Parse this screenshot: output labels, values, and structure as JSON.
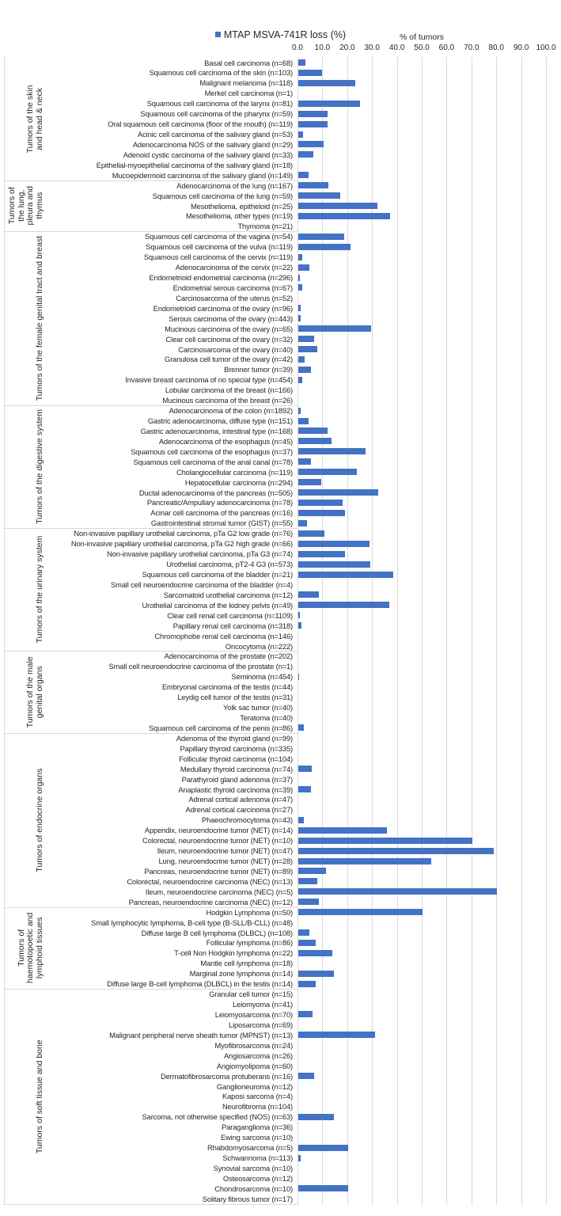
{
  "chart_data": {
    "type": "bar",
    "orientation": "horizontal",
    "legend": "MTAP MSVA-741R loss (%)",
    "legend_position": "top-center",
    "xlabel": "% of tumors",
    "xlim": [
      0,
      100
    ],
    "xticks": [
      "0.0",
      "10.0",
      "20.0",
      "30.0",
      "40.0",
      "50.0",
      "60.0",
      "70.0",
      "80.0",
      "90.0",
      "100.0"
    ],
    "grid": true,
    "color": "#4472c4",
    "groups": [
      {
        "name": "Tumors of the skin and head & neck",
        "lines": [
          "Tumors of the skin",
          "and head & neck"
        ],
        "items": [
          {
            "label": "Basal cell carcinoma (n=68)",
            "value": 2.9
          },
          {
            "label": "Squamous cell carcinoma of the skin (n=103)",
            "value": 9.7
          },
          {
            "label": "Malignant melanoma (n=118)",
            "value": 22.9
          },
          {
            "label": "Merkel cell carcinoma (n=1)",
            "value": 0
          },
          {
            "label": "Squamous cell carcinoma of the larynx (n=81)",
            "value": 24.7
          },
          {
            "label": "Squamous cell carcinoma of the pharynx (n=59)",
            "value": 11.9
          },
          {
            "label": "Oral squamous cell carcinoma (floor of the mouth) (n=119)",
            "value": 11.8
          },
          {
            "label": "Acinic cell carcinoma of the salivary gland (n=53)",
            "value": 1.9
          },
          {
            "label": "Adenocarcinoma NOS of the salivary gland (n=29)",
            "value": 10.3
          },
          {
            "label": "Adenoid cystic carcinoma of the salivary gland (n=33)",
            "value": 6.1
          },
          {
            "label": "Epithelial-myoepithelial carcinoma of the salivary gland (n=18)",
            "value": 0
          },
          {
            "label": "Mucoepidermoid carcinoma of the salivary gland (n=149)",
            "value": 4.0
          }
        ]
      },
      {
        "name": "Tumors of the lung, pleura and thymus",
        "lines": [
          "Tumors of",
          "the lung,",
          "pleura and",
          "thymus"
        ],
        "items": [
          {
            "label": "Adenocarcinoma of the lung (n=167)",
            "value": 12.0
          },
          {
            "label": "Squamous cell carcinoma of the lung (n=59)",
            "value": 16.9
          },
          {
            "label": "Mesothelioma, epitheloid (n=25)",
            "value": 32.0
          },
          {
            "label": "Mesothelioma, other types (n=19)",
            "value": 36.8
          },
          {
            "label": "Thymoma (n=21)",
            "value": 0
          }
        ]
      },
      {
        "name": "Tumors of the female genital tract and breast",
        "lines": [
          "Tumors of the female genital tract and breast"
        ],
        "items": [
          {
            "label": "Squamous cell carcinoma of the vagina (n=54)",
            "value": 18.5
          },
          {
            "label": "Squamous cell carcinoma of the vulva (n=119)",
            "value": 21.0
          },
          {
            "label": "Squamous cell carcinoma of the cervix (n=119)",
            "value": 1.7
          },
          {
            "label": "Adenocarcinoma of the cervix (n=22)",
            "value": 4.5
          },
          {
            "label": "Endometrioid endometrial carcinoma (n=296)",
            "value": 0.7
          },
          {
            "label": "Endometrial serous carcinoma (n=67)",
            "value": 1.5
          },
          {
            "label": "Carcinosarcoma of the uterus (n=52)",
            "value": 0
          },
          {
            "label": "Endometrioid carcinoma of the ovary (n=96)",
            "value": 1.0
          },
          {
            "label": "Serous carcinoma of the ovary (n=443)",
            "value": 1.1
          },
          {
            "label": "Mucinous carcinoma of the ovary (n=65)",
            "value": 29.2
          },
          {
            "label": "Clear cell carcinoma of the ovary (n=32)",
            "value": 6.3
          },
          {
            "label": "Carcinosarcoma of the ovary (n=40)",
            "value": 7.5
          },
          {
            "label": "Granulosa cell tumor of the ovary (n=42)",
            "value": 2.4
          },
          {
            "label": "Brenner tumor (n=39)",
            "value": 5.1
          },
          {
            "label": "Invasive breast carcinoma of no special type (n=454)",
            "value": 1.5
          },
          {
            "label": "Lobular carcinoma of the breast (n=166)",
            "value": 0
          },
          {
            "label": "Mucinous carcinoma of the breast (n=26)",
            "value": 0
          }
        ]
      },
      {
        "name": "Tumors of the digestive system",
        "lines": [
          "Tumors of the digestive system"
        ],
        "items": [
          {
            "label": "Adenocarcinoma of the colon (n=1892)",
            "value": 0.9
          },
          {
            "label": "Gastric adenocarcinoma, diffuse type (n=151)",
            "value": 4.0
          },
          {
            "label": "Gastric adenocarcinoma, intestinal type (n=168)",
            "value": 11.9
          },
          {
            "label": "Adenocarcinoma of the esophagus (n=45)",
            "value": 13.3
          },
          {
            "label": "Squamous cell carcinoma of the esophagus (n=37)",
            "value": 27.0
          },
          {
            "label": "Squamous cell carcinoma of the anal canal (n=78)",
            "value": 5.1
          },
          {
            "label": "Cholangiocellular carcinoma (n=119)",
            "value": 23.5
          },
          {
            "label": "Hepatocellular carcinoma (n=294)",
            "value": 9.2
          },
          {
            "label": "Ductal adenocarcinoma of the pancreas (n=505)",
            "value": 32.2
          },
          {
            "label": "Pancreatic/Ampullary adenocarcinoma (n=78)",
            "value": 17.9
          },
          {
            "label": "Acinar cell carcinoma of the pancreas (n=16)",
            "value": 18.8
          },
          {
            "label": "Gastrointestinal stromal tumor (GIST) (n=55)",
            "value": 3.6
          }
        ]
      },
      {
        "name": "Tumors of the urinary system",
        "lines": [
          "Tumors of the urinary system"
        ],
        "items": [
          {
            "label": "Non-invasive papillary urothelial carcinoma, pTa G2 low grade (n=76)",
            "value": 10.5
          },
          {
            "label": "Non-invasive papillary urothelial carcinoma, pTa G2 high grade (n=66)",
            "value": 28.8
          },
          {
            "label": "Non-invasive papillary urothelial carcinoma, pTa G3 (n=74)",
            "value": 18.9
          },
          {
            "label": "Urothelial carcinoma, pT2-4 G3 (n=573)",
            "value": 29.0
          },
          {
            "label": "Squamous cell carcinoma of the bladder (n=21)",
            "value": 38.1
          },
          {
            "label": "Small cell neuroendocrine carcinoma of the bladder (n=4)",
            "value": 0
          },
          {
            "label": "Sarcomatoid urothelial carcinoma (n=12)",
            "value": 8.3
          },
          {
            "label": "Urothelial carcinoma of the kidney pelvis (n=49)",
            "value": 36.7
          },
          {
            "label": "Clear cell renal cell carcinoma (n=1109)",
            "value": 0.5
          },
          {
            "label": "Papillary renal cell carcinoma (n=318)",
            "value": 1.3
          },
          {
            "label": "Chromophobe renal cell carcinoma (n=146)",
            "value": 0
          },
          {
            "label": "Oncocytoma (n=222)",
            "value": 0
          }
        ]
      },
      {
        "name": "Tumors of the male genital organs",
        "lines": [
          "Tumors of the male",
          "genital organs"
        ],
        "items": [
          {
            "label": "Adenocarcinoma of the prostate (n=202)",
            "value": 0
          },
          {
            "label": "Small cell neuroendocrine carcinoma of the prostate (n=1)",
            "value": 0
          },
          {
            "label": "Seminoma (n=454)",
            "value": 0.2
          },
          {
            "label": "Embryonal carcinoma of the testis (n=44)",
            "value": 0
          },
          {
            "label": "Leydig cell tumor of the testis (n=31)",
            "value": 0
          },
          {
            "label": "Yolk sac tumor (n=40)",
            "value": 0
          },
          {
            "label": "Teratoma (n=40)",
            "value": 0
          },
          {
            "label": "Squamous cell carcinoma of the penis (n=86)",
            "value": 2.3
          }
        ]
      },
      {
        "name": "Tumors of endocrine organs",
        "lines": [
          "Tumors of endocrine organs"
        ],
        "items": [
          {
            "label": "Adenoma of the thyroid gland (n=99)",
            "value": 0
          },
          {
            "label": "Papillary thyroid carcinoma (n=335)",
            "value": 0
          },
          {
            "label": "Follicular thyroid carcinoma (n=104)",
            "value": 0
          },
          {
            "label": "Medullary thyroid carcinoma (n=74)",
            "value": 5.4
          },
          {
            "label": "Parathyroid gland adenoma (n=37)",
            "value": 0
          },
          {
            "label": "Anaplastic thyroid carcinoma (n=39)",
            "value": 5.1
          },
          {
            "label": "Adrenal cortical adenoma (n=47)",
            "value": 0
          },
          {
            "label": "Adrenal cortical carcinoma (n=27)",
            "value": 0
          },
          {
            "label": "Phaeochromocytoma (n=43)",
            "value": 2.3
          },
          {
            "label": "Appendix, neuroendocrine tumor (NET) (n=14)",
            "value": 35.7
          },
          {
            "label": "Colorectal, neuroendocrine tumor (NET) (n=10)",
            "value": 70.0
          },
          {
            "label": "Ileum, neuroendocrine tumor (NET) (n=47)",
            "value": 78.7
          },
          {
            "label": "Lung, neuroendocrine tumor (NET) (n=28)",
            "value": 53.6
          },
          {
            "label": "Pancreas, neuroendocrine tumor (NET) (n=89)",
            "value": 11.2
          },
          {
            "label": "Colorectal, neuroendocrine carcinoma (NEC) (n=13)",
            "value": 7.7
          },
          {
            "label": "Ileum, neuroendocrine carcinoma (NEC) (n=5)",
            "value": 80.0
          },
          {
            "label": "Pancreas, neuroendocrine carcinoma (NEC) (n=12)",
            "value": 8.3
          }
        ]
      },
      {
        "name": "Tumors of haemotopoetic and lymphoid tissues",
        "lines": [
          "Tumors of",
          "haemotopoetic and",
          "lymphoid tissues"
        ],
        "items": [
          {
            "label": "Hodgkin Lymphoma (n=50)",
            "value": 50.0
          },
          {
            "label": "Small lymphocytic lymphoma, B-cell type (B-SLL/B-CLL) (n=48)",
            "value": 0
          },
          {
            "label": "Diffuse large B cell lymphoma (DLBCL) (n=108)",
            "value": 4.6
          },
          {
            "label": "Follicular lymphoma (n=86)",
            "value": 7.0
          },
          {
            "label": "T-cell Non Hodgkin lymphoma (n=22)",
            "value": 13.6
          },
          {
            "label": "Mantle cell lymphoma (n=18)",
            "value": 0
          },
          {
            "label": "Marginal zone lymphoma (n=14)",
            "value": 14.3
          },
          {
            "label": "Diffuse large B-cell lymphoma (DLBCL) in the testis (n=14)",
            "value": 7.1
          }
        ]
      },
      {
        "name": "Tumors of soft tissue and bone",
        "lines": [
          "Tumors of soft tissue and bone"
        ],
        "items": [
          {
            "label": "Granular cell tumor (n=15)",
            "value": 0
          },
          {
            "label": "Leiomyoma (n=41)",
            "value": 0
          },
          {
            "label": "Leiomyosarcoma (n=70)",
            "value": 5.7
          },
          {
            "label": "Liposarcoma (n=69)",
            "value": 0
          },
          {
            "label": "Malignant peripheral nerve sheath tumor (MPNST) (n=13)",
            "value": 30.8
          },
          {
            "label": "Myofibrosarcoma (n=24)",
            "value": 0
          },
          {
            "label": "Angiosarcoma (n=26)",
            "value": 0
          },
          {
            "label": "Angiomyolipoma (n=60)",
            "value": 0
          },
          {
            "label": "Dermatofibrosarcoma protuberans (n=16)",
            "value": 6.3
          },
          {
            "label": "Ganglioneuroma (n=12)",
            "value": 0
          },
          {
            "label": "Kaposi sarcoma (n=4)",
            "value": 0
          },
          {
            "label": "Neurofibroma (n=104)",
            "value": 0
          },
          {
            "label": "Sarcoma, not otherwise specified (NOS) (n=63)",
            "value": 14.3
          },
          {
            "label": "Paraganglioma (n=36)",
            "value": 0
          },
          {
            "label": "Ewing sarcoma (n=10)",
            "value": 0
          },
          {
            "label": "Rhabdomyosarcoma (n=5)",
            "value": 20.0
          },
          {
            "label": "Schwannoma (n=113)",
            "value": 0.9
          },
          {
            "label": "Synovial sarcoma (n=10)",
            "value": 0
          },
          {
            "label": "Osteosarcoma (n=12)",
            "value": 0
          },
          {
            "label": "Chondrosarcoma (n=10)",
            "value": 20.0
          },
          {
            "label": "Solitary fibrous tumor (n=17)",
            "value": 0
          }
        ]
      }
    ]
  }
}
